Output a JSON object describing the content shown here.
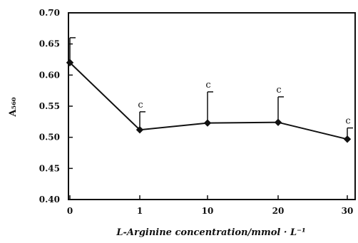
{
  "chart_data": {
    "type": "line",
    "title": "",
    "xlabel": "L-Arginine concentration/mmol · L⁻¹",
    "ylabel": "A₅₆₀",
    "categories": [
      "0",
      "1",
      "10",
      "20",
      "30"
    ],
    "ylim": [
      0.4,
      0.7
    ],
    "yticks": [
      "0.40",
      "0.45",
      "0.50",
      "0.55",
      "0.60",
      "0.65",
      "0.70"
    ],
    "series": [
      {
        "values": [
          0.62,
          0.512,
          0.523,
          0.524,
          0.497
        ],
        "error_upper": [
          0.04,
          0.029,
          0.05,
          0.041,
          0.018
        ],
        "annotations": [
          "",
          "c",
          "c",
          "c",
          "c"
        ]
      }
    ],
    "grid": false,
    "legend": "none"
  }
}
